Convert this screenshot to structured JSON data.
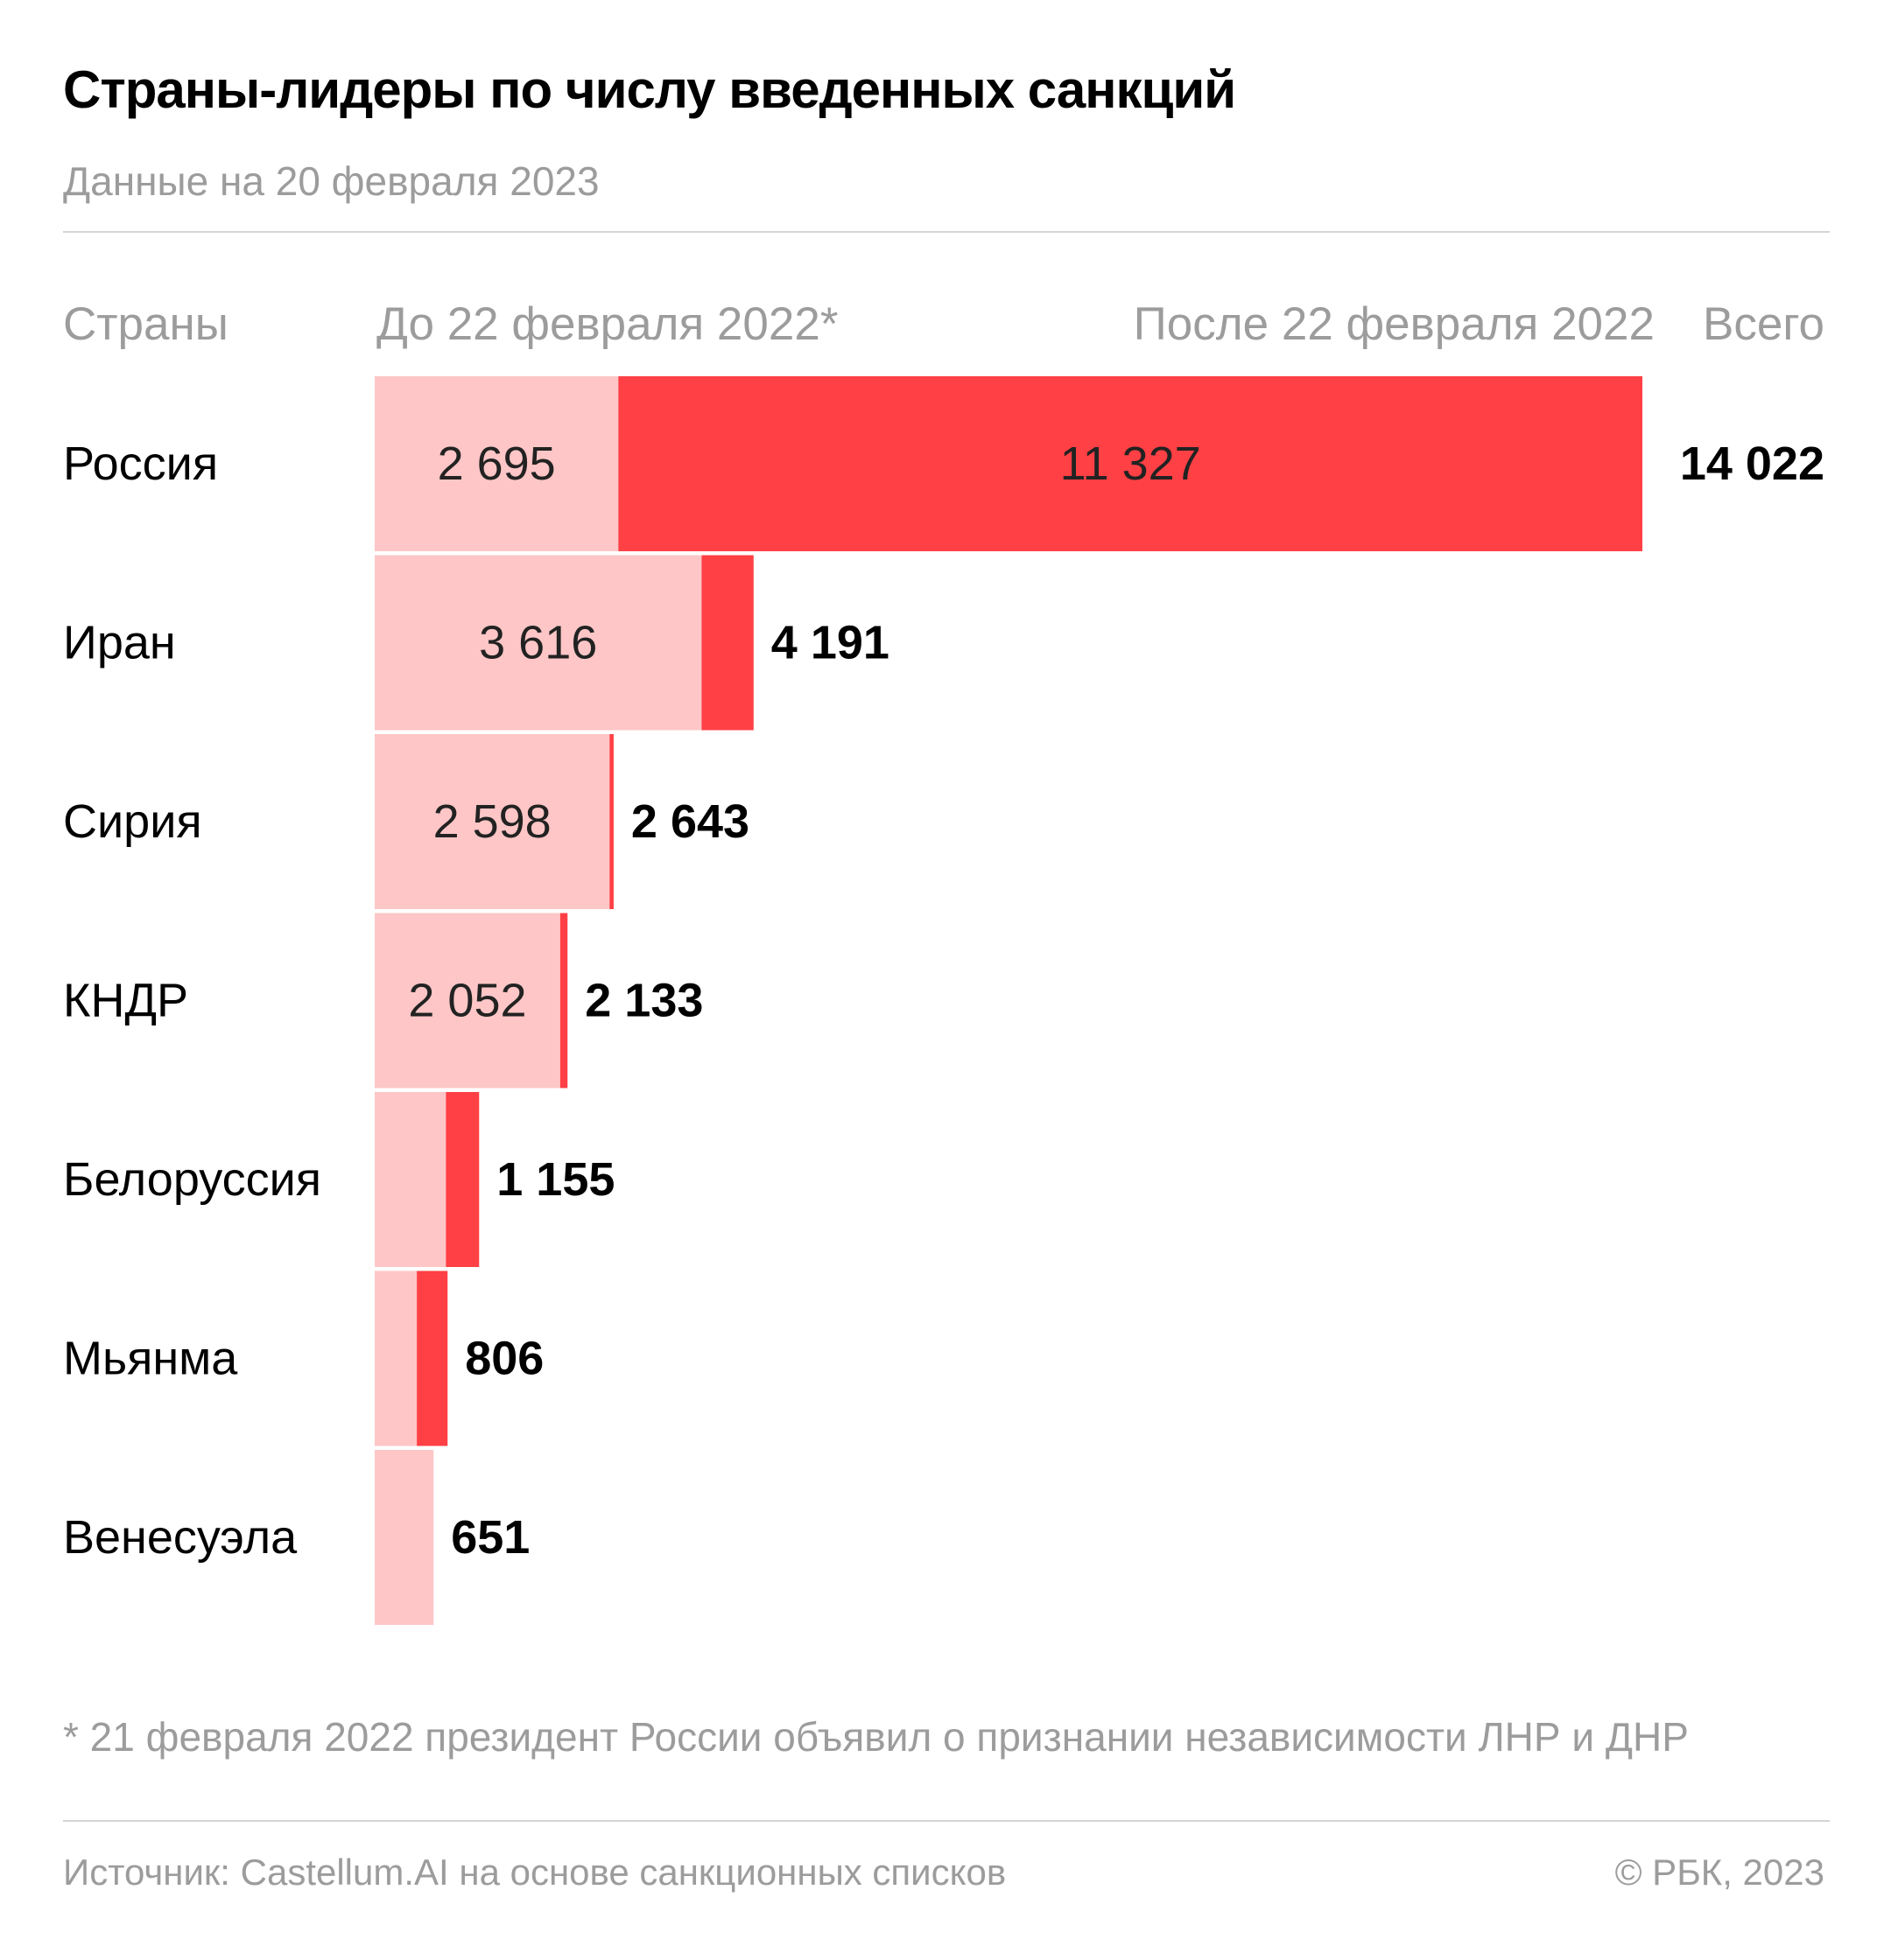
{
  "title": "Страны-лидеры по числу введенных санкций",
  "subtitle": "Данные на 20 февраля 2023",
  "headers": {
    "countries": "Страны",
    "before": "До 22 февраля 2022*",
    "after": "После 22 февраля 2022",
    "total": "Всего"
  },
  "colors": {
    "before": "#fec6c6",
    "after": "#ff4045"
  },
  "chart_data": {
    "type": "bar",
    "orientation": "horizontal",
    "stacked": true,
    "categories": [
      "Россия",
      "Иран",
      "Сирия",
      "КНДР",
      "Белоруссия",
      "Мьянма",
      "Венесуэла"
    ],
    "series": [
      {
        "name": "До 22 февраля 2022*",
        "values": [
          2695,
          3616,
          2598,
          2052,
          788,
          466,
          651
        ],
        "labels": [
          "2 695",
          "3 616",
          "2 598",
          "2 052",
          "",
          "",
          ""
        ]
      },
      {
        "name": "После 22 февраля 2022",
        "values": [
          11327,
          575,
          45,
          81,
          367,
          340,
          0
        ],
        "labels": [
          "11 327",
          "",
          "",
          "",
          "",
          "",
          ""
        ]
      }
    ],
    "totals": [
      14022,
      4191,
      2643,
      2133,
      1155,
      806,
      651
    ],
    "total_labels": [
      "14 022",
      "4 191",
      "2 643",
      "2 133",
      "1 155",
      "806",
      "651"
    ],
    "xlim": [
      0,
      14022
    ],
    "grid": false
  },
  "footnote": "* 21 февраля 2022 президент России объявил о признании независимости ЛНР и ДНР",
  "source": "Источник: Castellum.AI на основе санкционных списков",
  "copyright": "© РБК, 2023"
}
